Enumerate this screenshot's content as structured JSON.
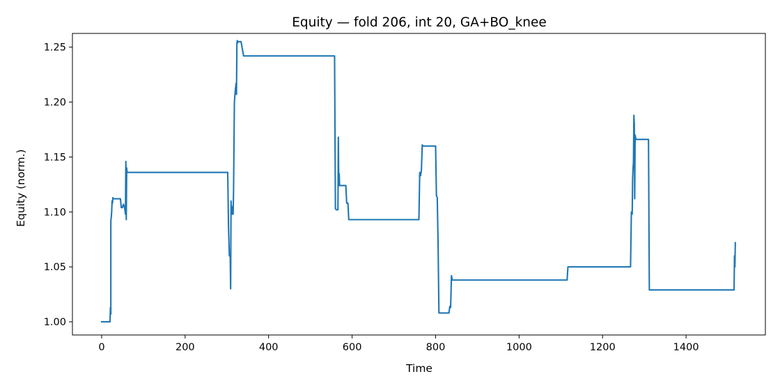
{
  "chart_data": {
    "type": "line",
    "title": "Equity — fold 206, int 20, GA+BO_knee",
    "xlabel": "Time",
    "ylabel": "Equity (norm.)",
    "xlim": [
      -70,
      1590
    ],
    "ylim": [
      0.988,
      1.2625
    ],
    "xticks": [
      0,
      200,
      400,
      600,
      800,
      1000,
      1200,
      1400
    ],
    "xtick_labels": [
      "0",
      "200",
      "400",
      "600",
      "800",
      "1000",
      "1200",
      "1400"
    ],
    "yticks": [
      1.0,
      1.05,
      1.1,
      1.15,
      1.2,
      1.25
    ],
    "ytick_labels": [
      "1.00",
      "1.05",
      "1.10",
      "1.15",
      "1.20",
      "1.25"
    ],
    "grid": false,
    "color": "#1f77b4",
    "series": [
      {
        "name": "equity",
        "x": [
          0,
          20,
          21,
          22,
          22,
          23,
          24,
          25,
          26,
          27,
          28,
          30,
          45,
          47,
          50,
          52,
          55,
          57,
          58,
          59,
          60,
          61,
          300,
          302,
          304,
          306,
          308,
          309,
          310,
          311,
          312,
          313,
          314,
          315,
          316,
          318,
          320,
          322,
          323,
          324,
          325,
          326,
          327,
          328,
          330,
          332,
          334,
          340,
          341,
          556,
          558,
          560,
          562,
          564,
          566,
          567,
          568,
          569,
          570,
          575,
          585,
          587,
          590,
          592,
          595,
          760,
          762,
          764,
          766,
          768,
          770,
          800,
          802,
          804,
          806,
          808,
          810,
          830,
          832,
          834,
          836,
          838,
          840,
          842,
          1115,
          1117,
          1265,
          1267,
          1269,
          1271,
          1272,
          1273,
          1274,
          1275,
          1276,
          1277,
          1278,
          1280,
          1282,
          1310,
          1312,
          1314,
          1515,
          1516,
          1517,
          1518
        ],
        "y": [
          1.0,
          1.0,
          1.013,
          1.007,
          1.092,
          1.095,
          1.1,
          1.11,
          1.108,
          1.113,
          1.112,
          1.112,
          1.112,
          1.104,
          1.104,
          1.107,
          1.104,
          1.098,
          1.146,
          1.093,
          1.14,
          1.136,
          1.136,
          1.136,
          1.085,
          1.06,
          1.06,
          1.03,
          1.11,
          1.1,
          1.105,
          1.098,
          1.1,
          1.098,
          1.12,
          1.2,
          1.21,
          1.217,
          1.207,
          1.253,
          1.256,
          1.254,
          1.255,
          1.255,
          1.255,
          1.255,
          1.255,
          1.242,
          1.242,
          1.242,
          1.242,
          1.103,
          1.102,
          1.102,
          1.102,
          1.168,
          1.124,
          1.135,
          1.124,
          1.124,
          1.124,
          1.108,
          1.108,
          1.093,
          1.093,
          1.093,
          1.136,
          1.133,
          1.138,
          1.161,
          1.16,
          1.16,
          1.115,
          1.113,
          1.07,
          1.008,
          1.008,
          1.008,
          1.008,
          1.014,
          1.013,
          1.042,
          1.038,
          1.038,
          1.038,
          1.05,
          1.05,
          1.05,
          1.1,
          1.098,
          1.13,
          1.14,
          1.145,
          1.188,
          1.18,
          1.112,
          1.17,
          1.166,
          1.166,
          1.166,
          1.029,
          1.029,
          1.029,
          1.06,
          1.05,
          1.072
        ]
      }
    ]
  }
}
